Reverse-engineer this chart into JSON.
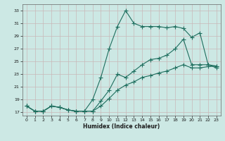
{
  "xlabel": "Humidex (Indice chaleur)",
  "background_color": "#cce8e4",
  "grid_color": "#c8b8b8",
  "line_color": "#1e6e5e",
  "ylim": [
    16.5,
    34
  ],
  "xlim": [
    -0.5,
    23.5
  ],
  "yticks": [
    17,
    19,
    21,
    23,
    25,
    27,
    29,
    31,
    33
  ],
  "xticks": [
    0,
    1,
    2,
    3,
    4,
    5,
    6,
    7,
    8,
    9,
    10,
    11,
    12,
    13,
    14,
    15,
    16,
    17,
    18,
    19,
    20,
    21,
    22,
    23
  ],
  "line1_x": [
    0,
    1,
    2,
    3,
    4,
    5,
    6,
    7,
    8,
    9,
    10,
    11,
    12,
    13,
    14,
    15,
    16,
    17,
    18,
    19,
    20,
    21,
    22,
    23
  ],
  "line1_y": [
    18.0,
    17.2,
    17.2,
    18.0,
    17.8,
    17.4,
    17.2,
    17.2,
    19.0,
    22.5,
    27.0,
    30.5,
    33.0,
    31.0,
    30.5,
    30.5,
    30.5,
    30.3,
    30.5,
    30.2,
    28.8,
    29.5,
    24.5,
    24.0
  ],
  "line2_x": [
    0,
    1,
    2,
    3,
    4,
    5,
    6,
    7,
    8,
    9,
    10,
    11,
    12,
    13,
    14,
    15,
    16,
    17,
    18,
    19,
    20,
    21,
    22,
    23
  ],
  "line2_y": [
    18.0,
    17.2,
    17.2,
    18.0,
    17.8,
    17.4,
    17.2,
    17.2,
    17.2,
    18.8,
    20.5,
    23.0,
    22.5,
    23.5,
    24.5,
    25.3,
    25.5,
    26.0,
    27.0,
    28.5,
    24.5,
    24.5,
    24.5,
    24.3
  ],
  "line3_x": [
    0,
    1,
    2,
    3,
    4,
    5,
    6,
    7,
    8,
    9,
    10,
    11,
    12,
    13,
    14,
    15,
    16,
    17,
    18,
    19,
    20,
    21,
    22,
    23
  ],
  "line3_y": [
    18.0,
    17.2,
    17.2,
    18.0,
    17.8,
    17.4,
    17.2,
    17.2,
    17.2,
    18.0,
    19.2,
    20.5,
    21.3,
    21.8,
    22.5,
    22.8,
    23.2,
    23.5,
    24.0,
    24.5,
    24.0,
    24.0,
    24.2,
    24.3
  ],
  "markersize": 2.0,
  "linewidth": 0.8
}
